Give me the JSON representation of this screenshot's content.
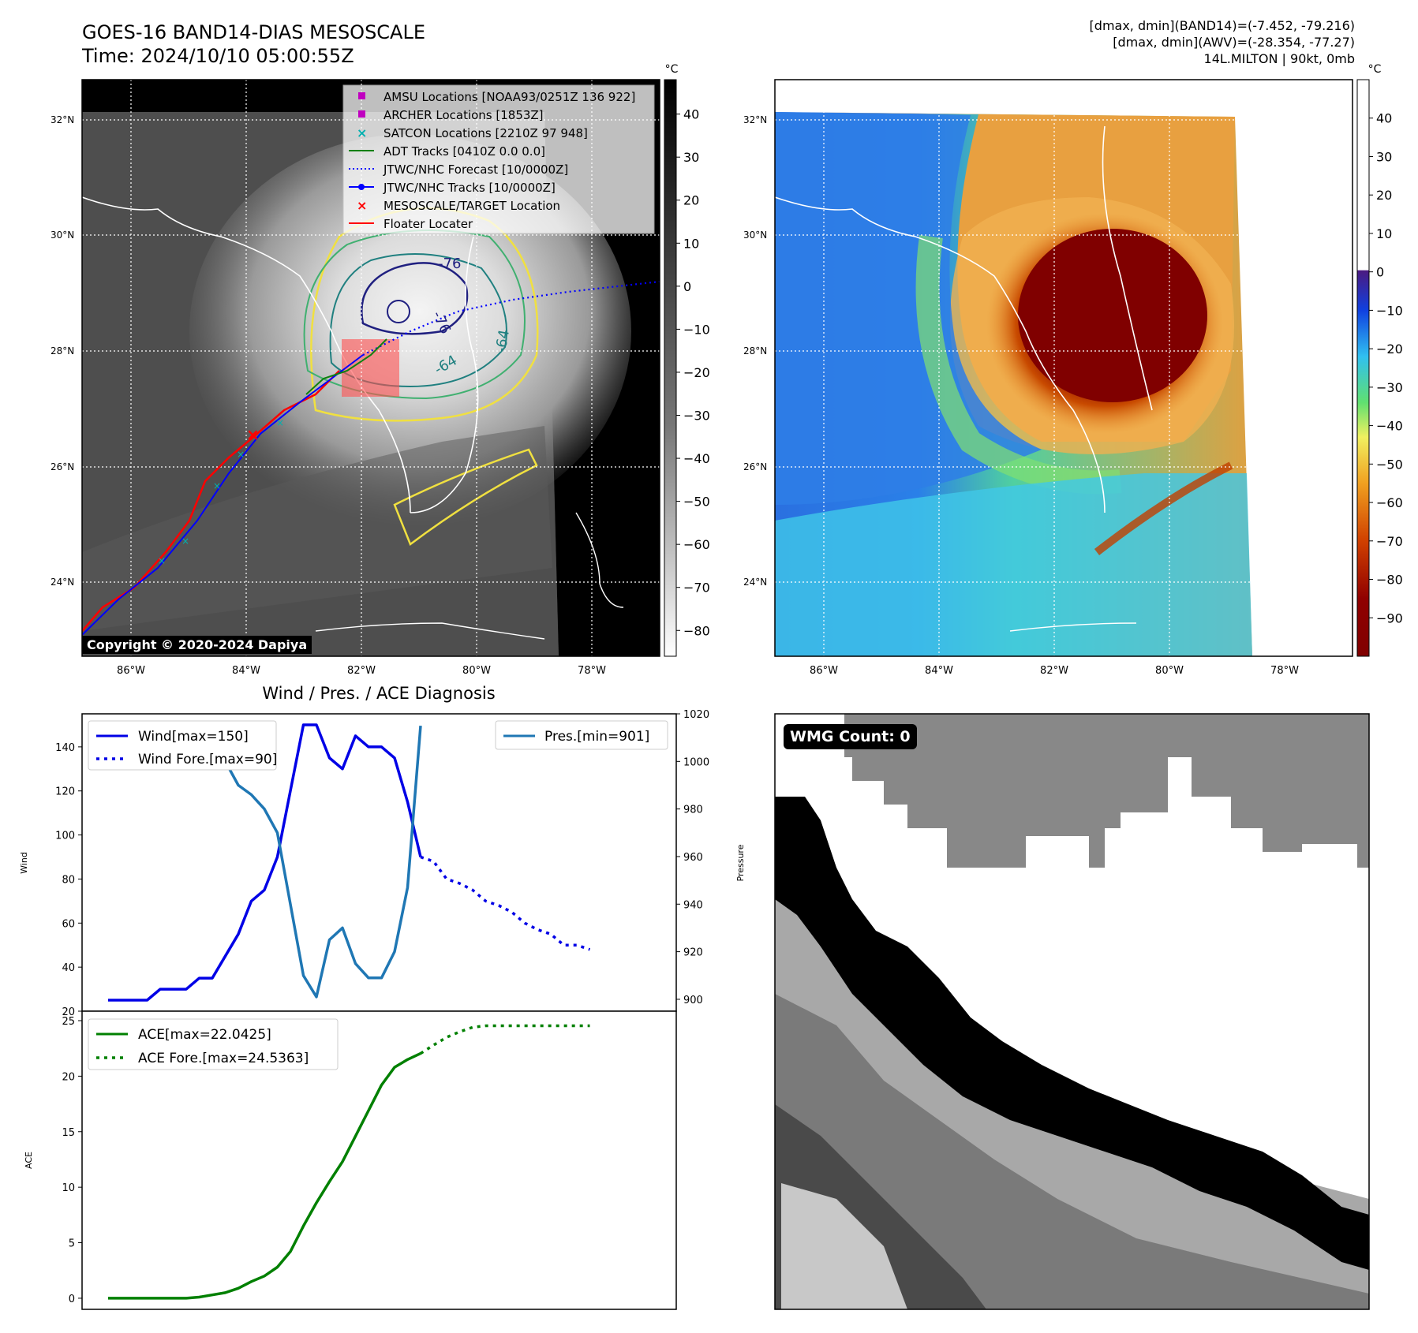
{
  "header": {
    "title_line1": "GOES-16 BAND14-DIAS MESOSCALE",
    "title_line2": "Time: 2024/10/10 05:00:55Z",
    "stats_line1": "[dmax, dmin](BAND14)=(-7.452, -79.216)",
    "stats_line2": "[dmax, dmin](AWV)=(-28.354, -77.27)",
    "stats_line3": "14L.MILTON | 90kt, 0mb"
  },
  "map": {
    "lat_ticks": [
      "32°N",
      "30°N",
      "28°N",
      "26°N",
      "24°N"
    ],
    "lon_ticks": [
      "86°W",
      "84°W",
      "82°W",
      "80°W",
      "78°W"
    ],
    "contour_labels": [
      "-76",
      "-76",
      "-64",
      "-64"
    ],
    "copyright": "Copyright © 2020-2024 Dapiya",
    "legend": [
      {
        "label": "AMSU Locations [NOAA93/0251Z 136 922]",
        "color": "#c000c0",
        "marker": "square"
      },
      {
        "label": "ARCHER Locations [1853Z]",
        "color": "#c000c0",
        "marker": "square"
      },
      {
        "label": "SATCON Locations [2210Z 97 948]",
        "color": "#00b0b0",
        "marker": "x"
      },
      {
        "label": "ADT Tracks [0410Z 0.0 0.0]",
        "color": "#108010",
        "marker": "line"
      },
      {
        "label": "JTWC/NHC Forecast [10/0000Z]",
        "color": "#0000ff",
        "marker": "dotted"
      },
      {
        "label": "JTWC/NHC Tracks [10/0000Z]",
        "color": "#0000ff",
        "marker": "line-dot"
      },
      {
        "label": "MESOSCALE/TARGET Location",
        "color": "#ff0000",
        "marker": "x"
      },
      {
        "label": "Floater Locater",
        "color": "#ff0000",
        "marker": "line"
      }
    ]
  },
  "colorbars": {
    "unit": "°C",
    "gray_ticks": [
      "40",
      "30",
      "20",
      "10",
      "0",
      "−10",
      "−20",
      "−30",
      "−40",
      "−50",
      "−60",
      "−70",
      "−80"
    ],
    "color_ticks": [
      "40",
      "30",
      "20",
      "10",
      "0",
      "−10",
      "−20",
      "−30",
      "−40",
      "−50",
      "−60",
      "−70",
      "−80",
      "−90"
    ]
  },
  "colors": {
    "wind": "#0000e6",
    "pressure": "#1f77b4",
    "ace": "#008000",
    "track_red": "#ff0000",
    "contour_yellow": "#f0e040",
    "contour_green": "#40b070",
    "contour_teal": "#208080",
    "contour_navy": "#202080"
  },
  "chart_data": [
    {
      "type": "line",
      "title": "Wind / Pres. / ACE Diagnosis",
      "ylabel": "Wind",
      "ylabel_right": "Pressure",
      "ylim": [
        20,
        155
      ],
      "ylim_right": [
        895,
        1020
      ],
      "y_ticks": [
        20,
        40,
        60,
        80,
        100,
        120,
        140
      ],
      "y_right_ticks": [
        900,
        920,
        940,
        960,
        980,
        1000,
        1020
      ],
      "series": [
        {
          "name": "Wind[max=150]",
          "axis": "left",
          "values": [
            25,
            25,
            25,
            25,
            30,
            30,
            30,
            35,
            35,
            45,
            55,
            70,
            75,
            90,
            120,
            150,
            150,
            135,
            130,
            145,
            140,
            140,
            135,
            115,
            90
          ]
        },
        {
          "name": "Wind Fore.[max=90]",
          "axis": "left",
          "style": "dotted",
          "x_start": 24,
          "values": [
            90,
            88,
            80,
            78,
            75,
            70,
            68,
            65,
            60,
            57,
            55,
            50,
            50,
            48
          ]
        },
        {
          "name": "Pres.[min=901]",
          "axis": "right",
          "values": [
            1015,
            1015,
            1015,
            1015,
            1011,
            1011,
            1009,
            1008,
            1008,
            1000,
            990,
            986,
            980,
            970,
            940,
            910,
            901,
            925,
            930,
            915,
            909,
            909,
            920,
            947,
            1015
          ]
        }
      ]
    },
    {
      "type": "line",
      "ylabel": "ACE",
      "ylim": [
        -1,
        25
      ],
      "y_ticks": [
        0,
        5,
        10,
        15,
        20,
        25
      ],
      "series": [
        {
          "name": "ACE[max=22.0425]",
          "values": [
            0,
            0,
            0,
            0,
            0,
            0,
            0,
            0.1,
            0.3,
            0.5,
            0.9,
            1.5,
            2.0,
            2.8,
            4.2,
            6.5,
            8.6,
            10.5,
            12.3,
            14.6,
            16.9,
            19.2,
            20.8,
            21.5,
            22.0425
          ]
        },
        {
          "name": "ACE Fore.[max=24.5363]",
          "style": "dotted",
          "x_start": 24,
          "values": [
            22.0425,
            22.8,
            23.5,
            24.0,
            24.4,
            24.5363,
            24.5363,
            24.5363,
            24.5363,
            24.5363,
            24.5363,
            24.5363,
            24.5363,
            24.5363
          ]
        }
      ]
    }
  ],
  "wmg": {
    "count_label": "WMG Count: 0"
  }
}
